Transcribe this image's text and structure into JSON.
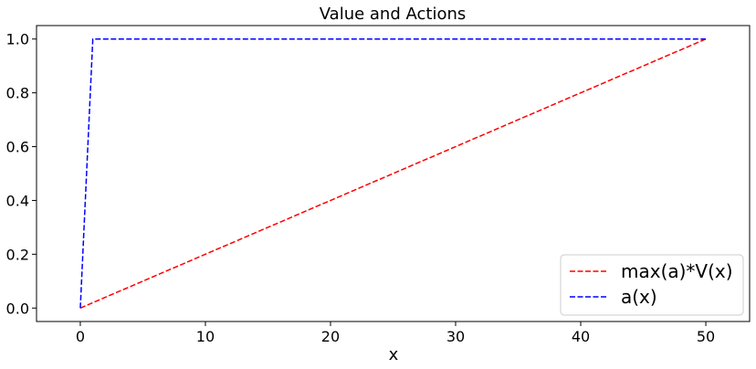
{
  "chart_data": {
    "type": "line",
    "title": "Value and Actions",
    "xlabel": "x",
    "ylabel": "",
    "xlim": [
      -3.5,
      53.5
    ],
    "ylim": [
      -0.05,
      1.05
    ],
    "xticks": [
      0,
      10,
      20,
      30,
      40,
      50
    ],
    "yticks": [
      0.0,
      0.2,
      0.4,
      0.6,
      0.8,
      1.0
    ],
    "xtick_labels": [
      "0",
      "10",
      "20",
      "30",
      "40",
      "50"
    ],
    "ytick_labels": [
      "0.0",
      "0.2",
      "0.4",
      "0.6",
      "0.8",
      "1.0"
    ],
    "grid": false,
    "legend_position": "bottom-right",
    "series": [
      {
        "name": "max(a)*V(x)",
        "color": "#ff0000",
        "style": "dashed",
        "x": [
          0,
          50
        ],
        "y": [
          0.0,
          1.0
        ]
      },
      {
        "name": "a(x)",
        "color": "#0000ff",
        "style": "dashed",
        "x": [
          0,
          1,
          50
        ],
        "y": [
          0.0,
          1.0,
          1.0
        ]
      }
    ]
  }
}
